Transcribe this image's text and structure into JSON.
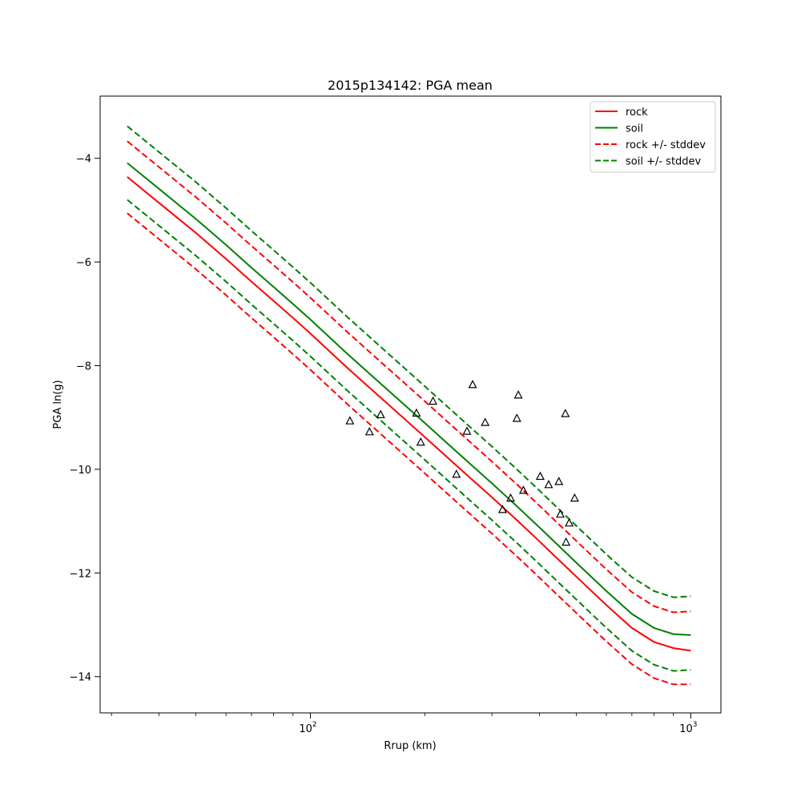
{
  "chart_data": {
    "type": "line",
    "title": "2015p134142: PGA mean",
    "xlabel": "Rrup (km)",
    "ylabel": "PGA ln(g)",
    "xscale": "log",
    "xlim": [
      28,
      1200
    ],
    "ylim": [
      -14.7,
      -2.8
    ],
    "x_ticks_major": [
      {
        "value": 100,
        "base": "10",
        "exp": "2"
      },
      {
        "value": 1000,
        "base": "10",
        "exp": "3"
      }
    ],
    "y_ticks": [
      -4,
      -6,
      -8,
      -10,
      -12,
      -14
    ],
    "y_tick_labels": [
      "−4",
      "−6",
      "−8",
      "−10",
      "−12",
      "−14"
    ],
    "grid": false,
    "legend_position": "top-right",
    "x": [
      33,
      40,
      50,
      60,
      70,
      80,
      90,
      100,
      125,
      150,
      200,
      250,
      300,
      350,
      400,
      450,
      500,
      600,
      700,
      800,
      900,
      1000
    ],
    "series": [
      {
        "name": "rock",
        "color": "#ff0000",
        "style": "solid",
        "values": [
          -4.36,
          -4.86,
          -5.44,
          -5.94,
          -6.38,
          -6.75,
          -7.08,
          -7.38,
          -8.04,
          -8.56,
          -9.38,
          -10.02,
          -10.54,
          -10.99,
          -11.39,
          -11.75,
          -12.07,
          -12.62,
          -13.06,
          -13.33,
          -13.45,
          -13.5
        ]
      },
      {
        "name": "soil",
        "color": "#008000",
        "style": "solid",
        "values": [
          -4.09,
          -4.59,
          -5.17,
          -5.67,
          -6.11,
          -6.48,
          -6.81,
          -7.11,
          -7.77,
          -8.29,
          -9.11,
          -9.75,
          -10.27,
          -10.72,
          -11.12,
          -11.48,
          -11.8,
          -12.35,
          -12.79,
          -13.06,
          -13.18,
          -13.2
        ]
      },
      {
        "name": "rock +/- stddev",
        "color": "#ff0000",
        "style": "dashed",
        "upper": [
          -3.67,
          -4.17,
          -4.75,
          -5.25,
          -5.69,
          -6.06,
          -6.39,
          -6.69,
          -7.35,
          -7.87,
          -8.69,
          -9.33,
          -9.85,
          -10.3,
          -10.7,
          -11.06,
          -11.38,
          -11.93,
          -12.37,
          -12.64,
          -12.76,
          -12.74
        ],
        "lower": [
          -5.06,
          -5.56,
          -6.14,
          -6.64,
          -7.08,
          -7.45,
          -7.78,
          -8.08,
          -8.74,
          -9.26,
          -10.08,
          -10.72,
          -11.24,
          -11.69,
          -12.09,
          -12.45,
          -12.77,
          -13.32,
          -13.76,
          -14.03,
          -14.15,
          -14.15
        ]
      },
      {
        "name": "soil +/- stddev",
        "color": "#008000",
        "style": "dashed",
        "upper": [
          -3.38,
          -3.88,
          -4.46,
          -4.96,
          -5.4,
          -5.77,
          -6.1,
          -6.4,
          -7.06,
          -7.58,
          -8.4,
          -9.04,
          -9.56,
          -10.01,
          -10.41,
          -10.77,
          -11.09,
          -11.64,
          -12.08,
          -12.35,
          -12.47,
          -12.45
        ],
        "lower": [
          -4.8,
          -5.3,
          -5.88,
          -6.38,
          -6.82,
          -7.19,
          -7.52,
          -7.82,
          -8.48,
          -9.0,
          -9.82,
          -10.46,
          -10.98,
          -11.43,
          -11.83,
          -12.19,
          -12.51,
          -13.06,
          -13.5,
          -13.77,
          -13.89,
          -13.87
        ]
      }
    ],
    "observations": {
      "marker": "triangle-open",
      "color": "#000000",
      "points": [
        [
          127,
          -9.07
        ],
        [
          143,
          -9.28
        ],
        [
          153,
          -8.95
        ],
        [
          190,
          -8.92
        ],
        [
          195,
          -9.48
        ],
        [
          210,
          -8.69
        ],
        [
          242,
          -10.1
        ],
        [
          258,
          -9.27
        ],
        [
          267,
          -8.37
        ],
        [
          288,
          -9.1
        ],
        [
          320,
          -10.78
        ],
        [
          336,
          -10.56
        ],
        [
          349,
          -9.02
        ],
        [
          352,
          -8.57
        ],
        [
          363,
          -10.41
        ],
        [
          402,
          -10.14
        ],
        [
          423,
          -10.3
        ],
        [
          450,
          -10.24
        ],
        [
          454,
          -10.87
        ],
        [
          468,
          -8.93
        ],
        [
          470,
          -11.41
        ],
        [
          479,
          -11.04
        ],
        [
          495,
          -10.56
        ]
      ]
    }
  }
}
